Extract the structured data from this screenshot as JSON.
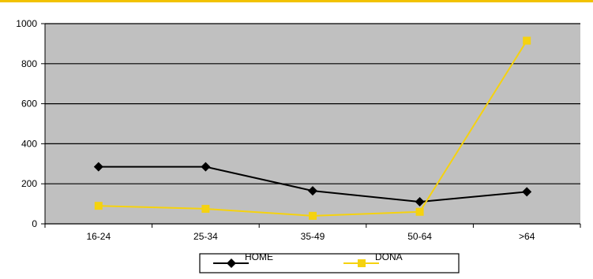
{
  "chart_data": {
    "type": "line",
    "title": "",
    "xlabel": "",
    "ylabel": "",
    "categories": [
      "16-24",
      "25-34",
      "35-49",
      "50-64",
      ">64"
    ],
    "ylim": [
      0,
      1000
    ],
    "yticks": [
      "0",
      "200",
      "400",
      "600",
      "800",
      "1000"
    ],
    "grid": true,
    "legend_position": "bottom",
    "series": [
      {
        "name": "HOME",
        "values": [
          285,
          285,
          165,
          110,
          160
        ],
        "color": "#000000",
        "marker": "diamond"
      },
      {
        "name": "DONA",
        "values": [
          90,
          75,
          40,
          60,
          915
        ],
        "color": "#f5d20f",
        "marker": "square"
      }
    ],
    "colors": {
      "plot_background": "#c0c0c0",
      "gridline": "#000000",
      "top_rule": "#f2c200"
    }
  }
}
